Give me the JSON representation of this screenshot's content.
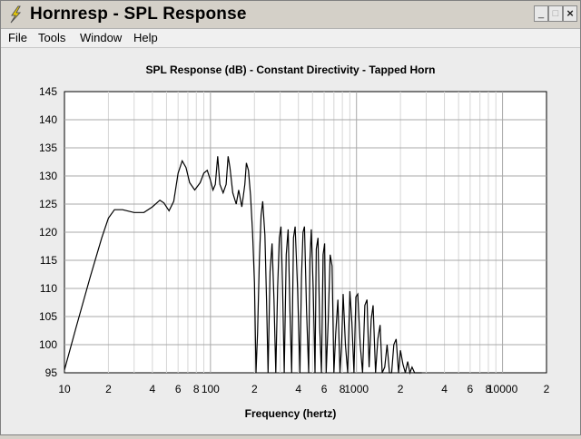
{
  "window": {
    "title": "Hornresp - SPL Response",
    "minimize_glyph": "_",
    "maximize_glyph": "□",
    "close_glyph": "×"
  },
  "menu": {
    "items": [
      "File",
      "Tools",
      "Window",
      "Help"
    ]
  },
  "icons": {
    "app": "lightning-icon"
  },
  "chart_data": {
    "type": "line",
    "title": "SPL Response (dB) - Constant Directivity - Tapped Horn",
    "xlabel": "Frequency (hertz)",
    "ylabel": "",
    "xscale": "log",
    "xlim": [
      10,
      20000
    ],
    "ylim": [
      95,
      145
    ],
    "grid": true,
    "y_ticks": [
      95,
      100,
      105,
      110,
      115,
      120,
      125,
      130,
      135,
      140,
      145
    ],
    "x_ticks": [
      {
        "value": 10,
        "label": "10"
      },
      {
        "value": 20,
        "label": "2"
      },
      {
        "value": 40,
        "label": "4"
      },
      {
        "value": 60,
        "label": "6"
      },
      {
        "value": 80,
        "label": "8"
      },
      {
        "value": 100,
        "label": "100"
      },
      {
        "value": 200,
        "label": "2"
      },
      {
        "value": 400,
        "label": "4"
      },
      {
        "value": 600,
        "label": "6"
      },
      {
        "value": 800,
        "label": "8"
      },
      {
        "value": 1000,
        "label": "1000"
      },
      {
        "value": 2000,
        "label": "2"
      },
      {
        "value": 4000,
        "label": "4"
      },
      {
        "value": 6000,
        "label": "6"
      },
      {
        "value": 8000,
        "label": "8"
      },
      {
        "value": 10000,
        "label": "10000"
      },
      {
        "value": 20000,
        "label": "2"
      }
    ],
    "line_color": "#000000",
    "series": [
      {
        "x": [
          10,
          12,
          15,
          18,
          20,
          22,
          25,
          30,
          35,
          40,
          45,
          48,
          52,
          56,
          60,
          64,
          68,
          72,
          78,
          85,
          90,
          95,
          100,
          104,
          108,
          112,
          116,
          122,
          128,
          132,
          136,
          142,
          150,
          156,
          164,
          168,
          172,
          176,
          182,
          188,
          194,
          200,
          205,
          210,
          216,
          222,
          228,
          236,
          242,
          248,
          256,
          264,
          272,
          280,
          288,
          296,
          304,
          312,
          320,
          330,
          340,
          350,
          360,
          370,
          380,
          395,
          410,
          420,
          430,
          440,
          455,
          470,
          480,
          490,
          505,
          520,
          530,
          545,
          560,
          575,
          590,
          605,
          620,
          640,
          660,
          680,
          700,
          720,
          745,
          770,
          790,
          810,
          840,
          870,
          900,
          930,
          960,
          990,
          1020,
          1060,
          1100,
          1140,
          1180,
          1220,
          1260,
          1300,
          1350,
          1400,
          1450,
          1500,
          1560,
          1620,
          1680,
          1740,
          1800,
          1870,
          1940,
          2000,
          2080,
          2160,
          2240,
          2320,
          2400,
          2500,
          2600,
          2700,
          2800
        ],
        "y": [
          95.5,
          103,
          112,
          119,
          122.5,
          124,
          124,
          123.5,
          123.5,
          124.5,
          125.7,
          125.2,
          123.8,
          125.5,
          130.5,
          132.7,
          131.5,
          128.8,
          127.5,
          128.8,
          130.5,
          131,
          129.2,
          127.5,
          128.5,
          133.5,
          128.5,
          127,
          128.5,
          133.5,
          131.5,
          127,
          125,
          127.5,
          124.5,
          126.5,
          128.5,
          132.3,
          131,
          126.5,
          120,
          111,
          95,
          102,
          115,
          123,
          125.5,
          119.5,
          108,
          95,
          113,
          118,
          108,
          95,
          110,
          119,
          121,
          110,
          95,
          116,
          120.5,
          106,
          95,
          119,
          121,
          110,
          95,
          112,
          120,
          121,
          106,
          95,
          115,
          120.5,
          110,
          95,
          117,
          119,
          103,
          95,
          116,
          118,
          95,
          104,
          116,
          114,
          95,
          102,
          108,
          95,
          100,
          109,
          100,
          95,
          109.5,
          104,
          95,
          108.5,
          109,
          100,
          95,
          107,
          108,
          96,
          104.5,
          107,
          95,
          101,
          103.5,
          95,
          96,
          100,
          95,
          95,
          100,
          101,
          95,
          99,
          96.5,
          95,
          97,
          95,
          96,
          95,
          95,
          95,
          95
        ]
      }
    ]
  }
}
